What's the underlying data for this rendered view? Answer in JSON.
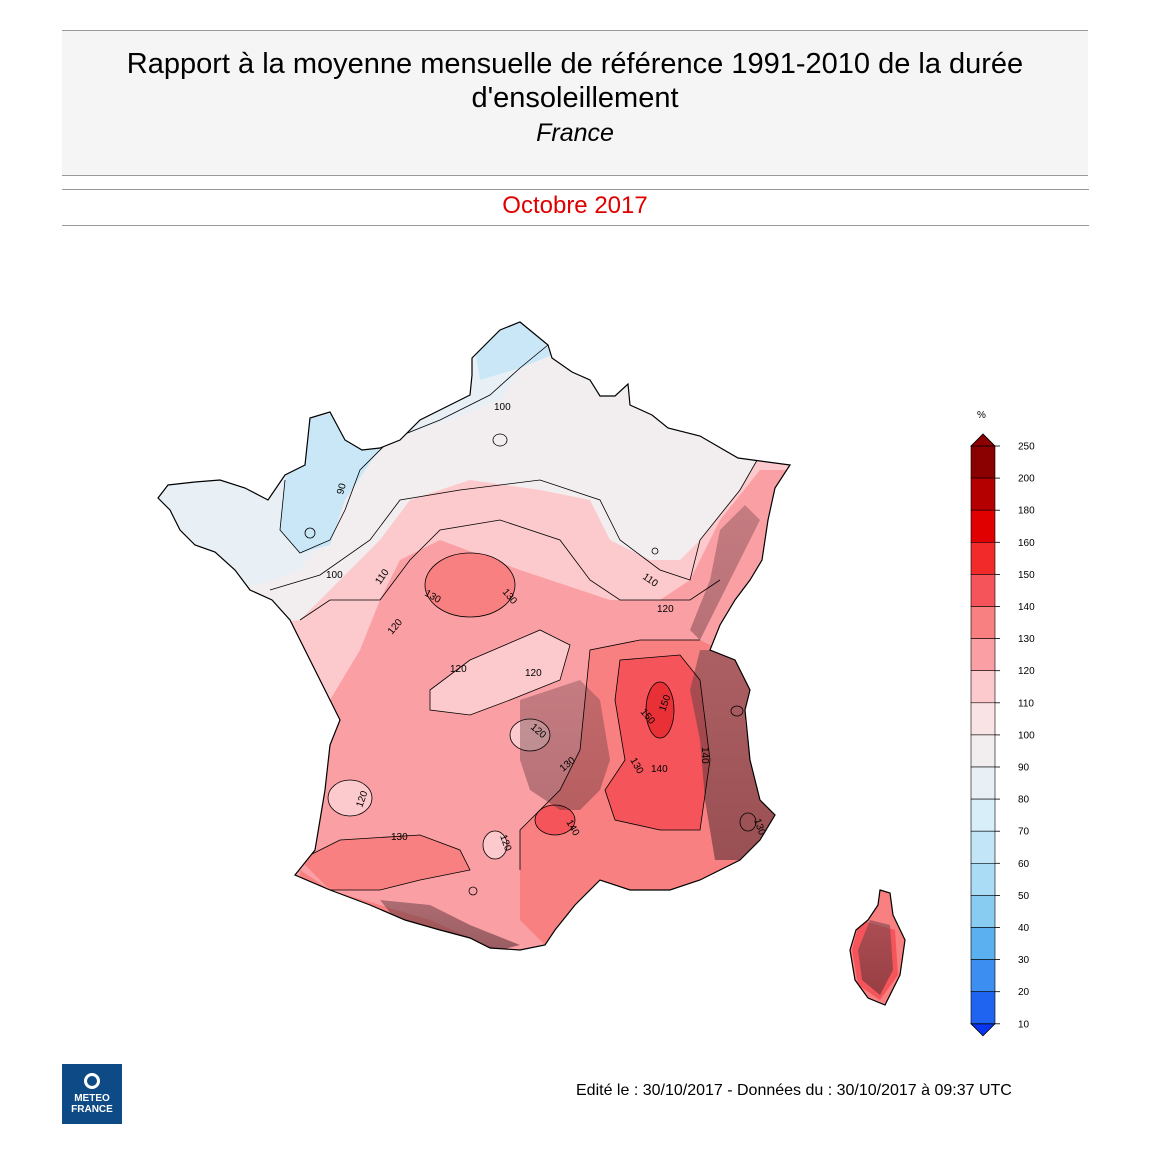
{
  "header": {
    "title": "Rapport à la moyenne mensuelle de référence 1991-2010 de la durée d'ensoleillement",
    "subtitle": "France",
    "month": "Octobre 2017",
    "month_color": "#e00000"
  },
  "legend": {
    "unit": "%",
    "levels": [
      "250",
      "200",
      "180",
      "160",
      "150",
      "140",
      "130",
      "120",
      "110",
      "100",
      "90",
      "80",
      "70",
      "60",
      "50",
      "40",
      "30",
      "20",
      "10"
    ],
    "colors": [
      "#8b0000",
      "#b50000",
      "#e00000",
      "#f22a2a",
      "#f5555a",
      "#f88080",
      "#faa0a5",
      "#fcc9cc",
      "#fae3e5",
      "#f2eef0",
      "#e8f0f6",
      "#d8eef8",
      "#c2e6f7",
      "#aadcf5",
      "#88ccf2",
      "#5bb1f0",
      "#3c8ff0",
      "#1f64f0",
      "#0a35f0"
    ]
  },
  "contour_labels": [
    "100",
    "90",
    "100",
    "110",
    "130",
    "130",
    "120",
    "120",
    "120",
    "110",
    "120",
    "120",
    "150",
    "150",
    "140",
    "130",
    "140",
    "130",
    "120",
    "140",
    "130",
    "130",
    "120"
  ],
  "footer": {
    "edit_text": "Edité le : 30/10/2017 - Données du : 30/10/2017 à 09:37 UTC"
  },
  "logo": {
    "line1": "METEO",
    "line2": "FRANCE"
  }
}
